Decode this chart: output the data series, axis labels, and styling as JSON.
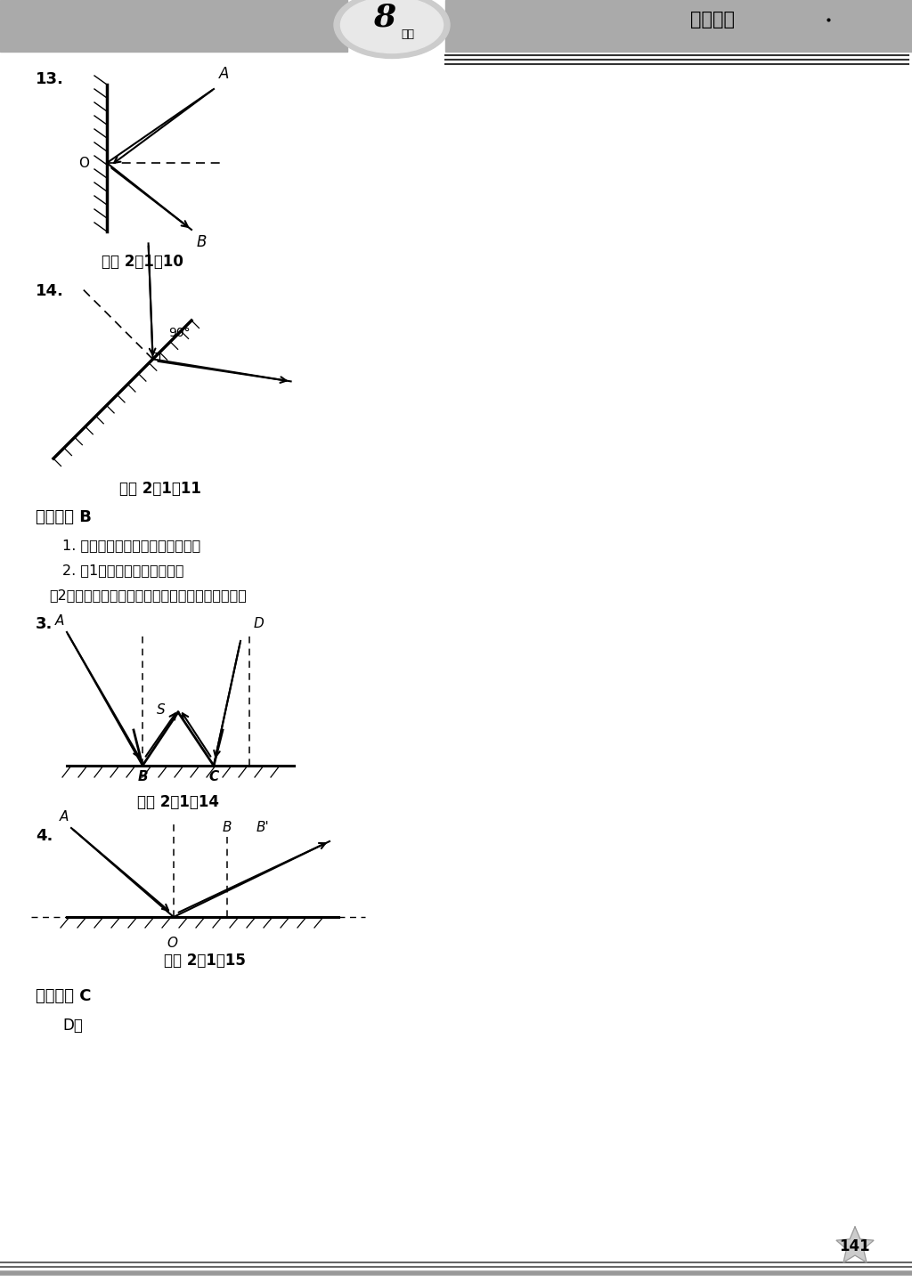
{
  "bg_color": "#ffffff",
  "page_width": 10.24,
  "page_height": 14.4,
  "title_text": "参考答案",
  "q13_label": "13.",
  "q13_caption": "答图 2－1－10",
  "q14_label": "14.",
  "q14_caption": "答图 2－1－11",
  "section_b": "能力提升 B",
  "text_line1": "1. 平面镜，光的反射定律，人射。",
  "text_line2": "2. （1）反射角等于入射角；",
  "text_line3": "（2）当光发生反射时，入射角增大，反射角增大。",
  "text_line4": "3.",
  "q3_caption": "答图 2－1－14",
  "q4_label": "4.",
  "q4_caption": "答图 2－1－15",
  "section_c": "探究拓展 C",
  "text_d": "D。",
  "page_num": "141"
}
